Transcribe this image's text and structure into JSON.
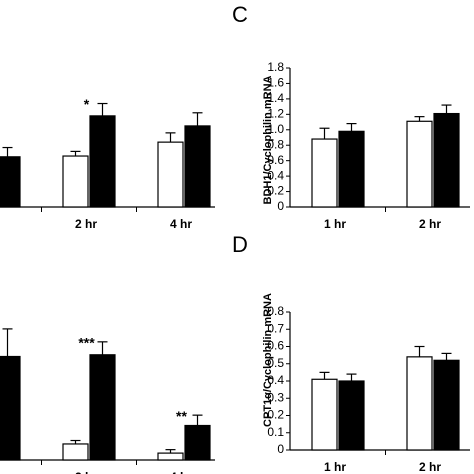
{
  "chart_data": [
    {
      "type": "bar",
      "categories": [
        null,
        "2 hr",
        "4 hr"
      ],
      "ylim": [
        0,
        1.8
      ],
      "series": [
        {
          "color": "#ffffff",
          "values": [
            null,
            0.66,
            0.84
          ],
          "errors": [
            null,
            0.06,
            0.12
          ]
        },
        {
          "color": "#000000",
          "values": [
            0.65,
            1.18,
            1.05
          ],
          "errors": [
            0.12,
            0.16,
            0.17
          ],
          "labels": [
            null,
            "*",
            null
          ]
        }
      ]
    },
    {
      "type": "bar",
      "panel": "C",
      "ylabel": "BDH1/Cyclophilin mRNA",
      "categories": [
        "1 hr",
        "2 hr"
      ],
      "ylim": [
        0,
        1.8
      ],
      "yticks": [
        0,
        {
          "value": 0.2,
          "label": "0.2"
        },
        {
          "value": 0.4,
          "label": "0.4"
        },
        {
          "value": 0.6,
          "label": "0.6"
        },
        {
          "value": 0.8,
          "label": "0.8"
        },
        {
          "value": 1.0,
          "label": "1.0"
        },
        {
          "value": 1.2,
          "label": "1.2"
        },
        {
          "value": 1.4,
          "label": "1.4"
        },
        {
          "value": 1.6,
          "label": "1.6"
        },
        {
          "value": 1.8,
          "label": "1.8"
        }
      ],
      "series": [
        {
          "color": "#ffffff",
          "values": [
            0.88,
            1.11
          ],
          "errors": [
            0.14,
            0.06
          ]
        },
        {
          "color": "#000000",
          "values": [
            0.98,
            1.21
          ],
          "errors": [
            0.1,
            0.11
          ]
        }
      ]
    },
    {
      "type": "bar",
      "categories": [
        null,
        "2 hr",
        "4 hr"
      ],
      "ylim": [
        0,
        0.8
      ],
      "series": [
        {
          "color": "#ffffff",
          "values": [
            null,
            0.093,
            0.04
          ],
          "errors": [
            null,
            0.02,
            0.02
          ]
        },
        {
          "color": "#000000",
          "values": [
            0.6,
            0.61,
            0.2
          ],
          "errors": [
            0.16,
            0.075,
            0.06
          ],
          "labels": [
            null,
            "***",
            "**"
          ]
        }
      ]
    },
    {
      "type": "bar",
      "panel": "D",
      "ylabel": "CPT1α/Cyclophilin mRNA",
      "categories": [
        "1 hr",
        "2 hr"
      ],
      "ylim": [
        0,
        0.8
      ],
      "yticks": [
        0,
        0.1,
        0.2,
        0.3,
        0.4,
        0.5,
        0.6,
        0.7,
        0.8
      ],
      "series": [
        {
          "color": "#ffffff",
          "values": [
            0.41,
            0.54
          ],
          "errors": [
            0.04,
            0.06
          ]
        },
        {
          "color": "#000000",
          "values": [
            0.4,
            0.52
          ],
          "errors": [
            0.04,
            0.04
          ]
        }
      ]
    }
  ]
}
